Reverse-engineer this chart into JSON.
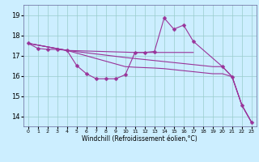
{
  "background_color": "#cceeff",
  "line_color": "#993399",
  "markersize": 2.5,
  "linewidth": 0.8,
  "xlabel": "Windchill (Refroidissement éolien,°C)",
  "ylabel_ticks": [
    14,
    15,
    16,
    17,
    18,
    19
  ],
  "xlim": [
    -0.5,
    23.5
  ],
  "ylim": [
    13.5,
    19.5
  ],
  "xticks": [
    0,
    1,
    2,
    3,
    4,
    5,
    6,
    7,
    8,
    9,
    10,
    11,
    12,
    13,
    14,
    15,
    16,
    17,
    18,
    19,
    20,
    21,
    22,
    23
  ],
  "grid_color": "#99cccc",
  "series1_x": [
    0,
    1,
    2,
    3,
    4,
    5,
    6,
    7,
    8,
    9,
    10,
    11,
    12,
    13,
    14,
    15,
    16,
    17,
    20,
    21,
    22,
    23
  ],
  "series1_y": [
    17.6,
    17.35,
    17.3,
    17.3,
    17.25,
    16.5,
    16.1,
    15.85,
    15.85,
    15.85,
    16.05,
    17.15,
    17.15,
    17.2,
    18.85,
    18.3,
    18.5,
    17.7,
    16.45,
    15.95,
    14.55,
    13.7
  ],
  "series2_x": [
    0,
    4,
    11,
    12,
    13,
    14,
    17
  ],
  "series2_y": [
    17.6,
    17.25,
    17.15,
    17.15,
    17.15,
    17.15,
    17.15
  ],
  "series3_x": [
    0,
    4,
    10,
    11,
    12,
    13,
    14,
    17,
    18,
    19,
    20,
    21,
    22,
    23
  ],
  "series3_y": [
    17.6,
    17.25,
    16.9,
    16.85,
    16.8,
    16.75,
    16.7,
    16.55,
    16.5,
    16.45,
    16.45,
    15.95,
    14.55,
    13.7
  ],
  "series4_x": [
    0,
    4,
    10,
    11,
    12,
    13,
    14,
    17,
    18,
    19,
    20,
    21,
    22,
    23
  ],
  "series4_y": [
    17.6,
    17.25,
    16.45,
    16.42,
    16.4,
    16.38,
    16.35,
    16.2,
    16.15,
    16.1,
    16.1,
    15.95,
    14.55,
    13.7
  ]
}
